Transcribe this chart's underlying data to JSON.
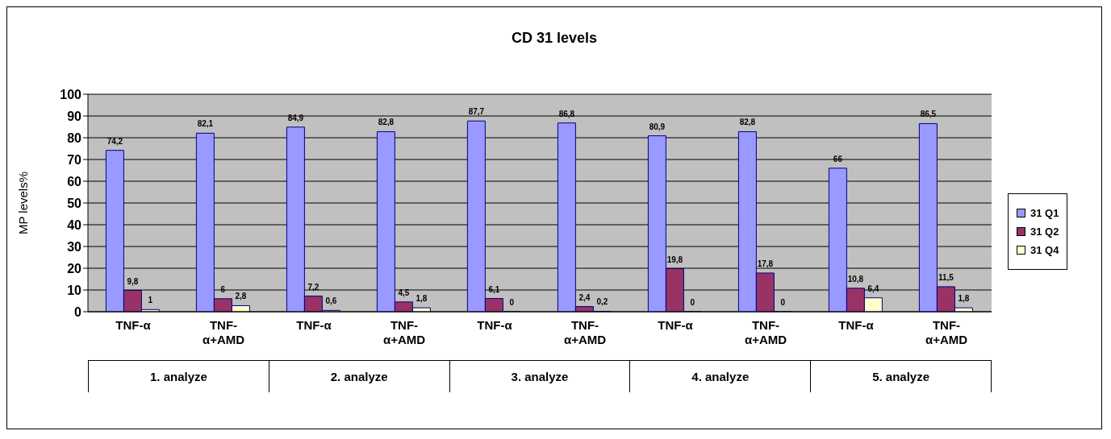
{
  "chart_data": {
    "type": "bar",
    "title": "CD 31 levels",
    "ylabel": "MP levels%",
    "categories": [
      "TNF-α",
      "TNF-α+AMD",
      "TNF-α",
      "TNF-α+AMD",
      "TNF-α",
      "TNF-α+AMD",
      "TNF-α",
      "TNF-α+AMD",
      "TNF-α",
      "TNF-α+AMD"
    ],
    "annotations": [
      "1. analyze",
      "2. analyze",
      "3. analyze",
      "4. analyze",
      "5. analyze"
    ],
    "series": [
      {
        "name": "31 Q1",
        "color": "#9999ff",
        "values": [
          74.2,
          82.1,
          84.9,
          82.8,
          87.7,
          86.8,
          80.9,
          82.8,
          66,
          86.5
        ],
        "value_labels": [
          "74,2",
          "82,1",
          "84,9",
          "82,8",
          "87,7",
          "86,8",
          "80,9",
          "82,8",
          "66",
          "86,5"
        ]
      },
      {
        "name": "31 Q2",
        "color": "#993366",
        "values": [
          9.8,
          6,
          7.2,
          4.5,
          6.1,
          2.4,
          19.8,
          17.8,
          10.8,
          11.5
        ],
        "value_labels": [
          "9,8",
          "6",
          "7,2",
          "4,5",
          "6,1",
          "2,4",
          "19,8",
          "17,8",
          "10,8",
          "11,5"
        ]
      },
      {
        "name": "31 Q4",
        "color": "#ffffcc",
        "values": [
          1,
          2.8,
          0.6,
          1.8,
          0,
          0.2,
          0,
          0,
          6.4,
          1.8
        ],
        "value_labels": [
          "1",
          "2,8",
          "0,6",
          "1,8",
          "0",
          "0,2",
          "0",
          "0",
          "6,4",
          "1,8"
        ]
      }
    ],
    "ylim": [
      0,
      100
    ],
    "yticks": [
      0,
      10,
      20,
      30,
      40,
      50,
      60,
      70,
      80,
      90,
      100
    ],
    "grid": "y",
    "legend": "right"
  }
}
